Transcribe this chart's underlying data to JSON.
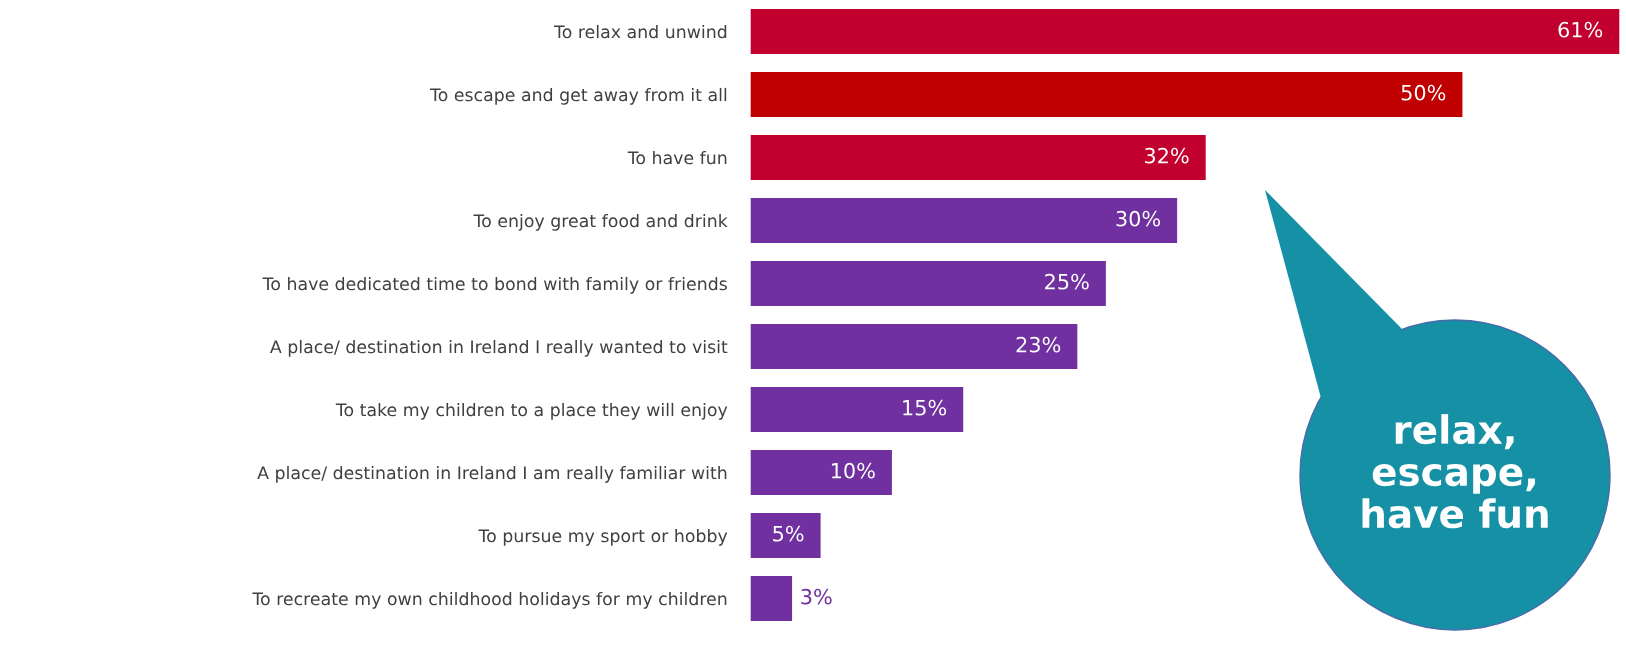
{
  "chart_data": {
    "type": "bar",
    "orientation": "horizontal",
    "categories": [
      "To relax and unwind",
      "To escape and get away from it all",
      "To have fun",
      "To enjoy great food and drink",
      "To have dedicated time to bond with family or friends",
      "A place/ destination in Ireland I really wanted to visit",
      "To take my children to a place they will enjoy",
      "A place/ destination in Ireland I am really familiar with",
      "To pursue my sport or hobby",
      "To recreate my own childhood holidays for my children"
    ],
    "values": [
      61,
      50,
      32,
      30,
      25,
      23,
      15,
      10,
      5,
      3
    ],
    "value_labels": [
      "61%",
      "50%",
      "32%",
      "30%",
      "25%",
      "23%",
      "15%",
      "10%",
      "5%",
      "3%"
    ],
    "colors": [
      "#c20030",
      "#c00000",
      "#c20030",
      "#7030a0",
      "#7030a0",
      "#7030a0",
      "#7030a0",
      "#7030a0",
      "#7030a0",
      "#7030a0"
    ],
    "tick_labels": "y",
    "grid": false,
    "legend": false,
    "annotations": [
      "relax,\nescape,\nhave fun"
    ]
  }
}
